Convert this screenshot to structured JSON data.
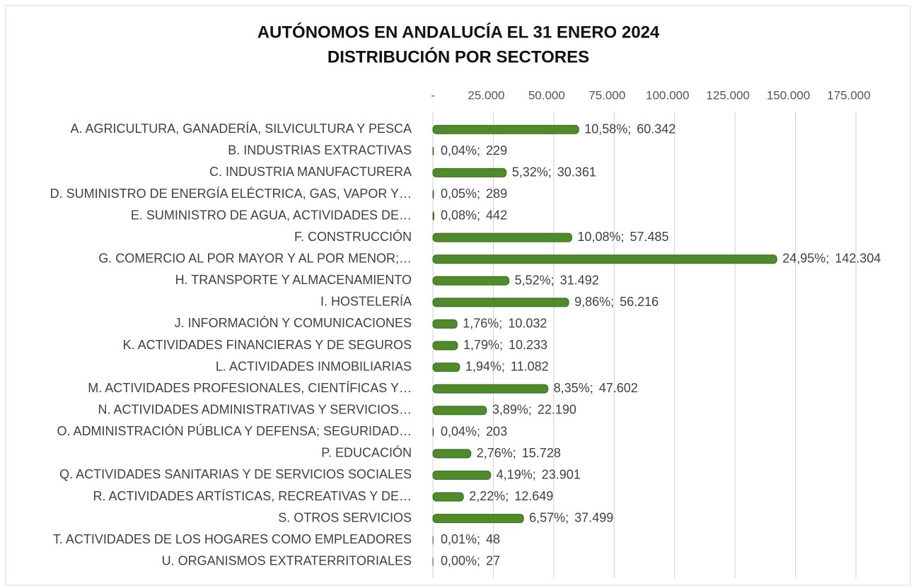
{
  "chart_data": {
    "type": "hbar",
    "title": "AUTÓNOMOS EN ANDALUCÍA EL 31 ENERO 2024",
    "subtitle": "DISTRIBUCIÓN POR SECTORES",
    "categories": [
      "A. AGRICULTURA, GANADERÍA, SILVICULTURA Y PESCA",
      "B. INDUSTRIAS EXTRACTIVAS",
      "C. INDUSTRIA MANUFACTURERA",
      "D. SUMINISTRO DE ENERGÍA ELÉCTRICA, GAS, VAPOR Y…",
      "E. SUMINISTRO DE AGUA, ACTIVIDADES DE…",
      "F. CONSTRUCCIÓN",
      "G. COMERCIO AL POR MAYOR Y AL POR MENOR;…",
      "H. TRANSPORTE Y ALMACENAMIENTO",
      "I. HOSTELERÍA",
      "J. INFORMACIÓN Y COMUNICACIONES",
      "K. ACTIVIDADES FINANCIERAS Y DE SEGUROS",
      "L. ACTIVIDADES INMOBILIARIAS",
      "M. ACTIVIDADES PROFESIONALES, CIENTÍFICAS Y…",
      "N. ACTIVIDADES ADMINISTRATIVAS Y SERVICIOS…",
      "O. ADMINISTRACIÓN PÚBLICA Y DEFENSA; SEGURIDAD…",
      "P. EDUCACIÓN",
      "Q. ACTIVIDADES SANITARIAS Y DE SERVICIOS SOCIALES",
      "R. ACTIVIDADES ARTÍSTICAS, RECREATIVAS Y DE…",
      "S. OTROS SERVICIOS",
      "T. ACTIVIDADES DE LOS HOGARES COMO EMPLEADORES",
      "U. ORGANISMOS EXTRATERRITORIALES"
    ],
    "values": [
      60342,
      229,
      30361,
      289,
      442,
      57485,
      142304,
      31492,
      56216,
      10032,
      10233,
      11082,
      47602,
      22190,
      203,
      15728,
      23901,
      12649,
      37499,
      48,
      27
    ],
    "value_labels": [
      "60.342",
      "229",
      "30.361",
      "289",
      "442",
      "57.485",
      "142.304",
      "31.492",
      "56.216",
      "10.032",
      "10.233",
      "11.082",
      "47.602",
      "22.190",
      "203",
      "15.728",
      "23.901",
      "12.649",
      "37.499",
      "48",
      "27"
    ],
    "shares": [
      10.58,
      0.04,
      5.32,
      0.05,
      0.08,
      10.08,
      24.95,
      5.52,
      9.86,
      1.76,
      1.79,
      1.94,
      8.35,
      3.89,
      0.04,
      2.76,
      4.19,
      2.22,
      6.57,
      0.01,
      0.0
    ],
    "share_labels": [
      "10,58%;",
      "0,04%;",
      "5,32%;",
      "0,05%;",
      "0,08%;",
      "10,08%;",
      "24,95%;",
      "5,52%;",
      "9,86%;",
      "1,76%;",
      "1,79%;",
      "1,94%;",
      "8,35%;",
      "3,89%;",
      "0,04%;",
      "2,76%;",
      "4,19%;",
      "2,22%;",
      "6,57%;",
      "0,01%;",
      "0,00%;"
    ],
    "color": "#4f8a2b",
    "xlim": [
      0,
      175000
    ],
    "xticks": [
      {
        "value": 0,
        "label": "-"
      },
      {
        "value": 25000,
        "label": "25.000"
      },
      {
        "value": 50000,
        "label": "50.000"
      },
      {
        "value": 75000,
        "label": "75.000"
      },
      {
        "value": 100000,
        "label": "100.000"
      },
      {
        "value": 125000,
        "label": "125.000"
      },
      {
        "value": 150000,
        "label": "150.000"
      },
      {
        "value": 175000,
        "label": "175.000"
      }
    ],
    "grid": true
  }
}
